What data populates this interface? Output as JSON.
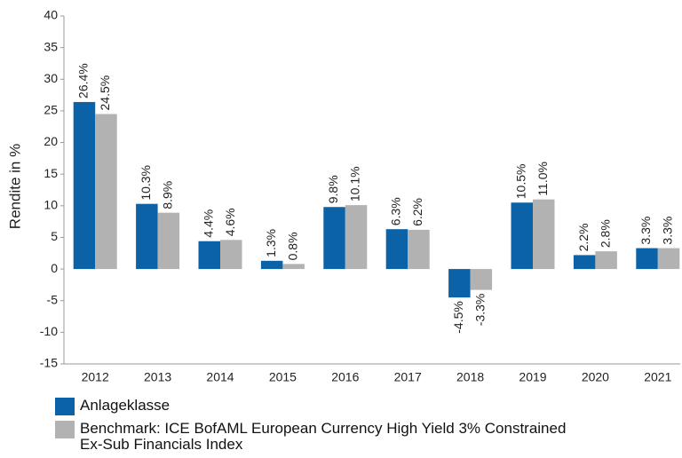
{
  "chart_data": {
    "type": "bar",
    "y_label": "Rendite in %",
    "categories": [
      "2012",
      "2013",
      "2014",
      "2015",
      "2016",
      "2017",
      "2018",
      "2019",
      "2020",
      "2021"
    ],
    "series": [
      {
        "name": "Anlageklasse",
        "color": "#0b62a6",
        "values": [
          26.4,
          10.3,
          4.4,
          1.3,
          9.8,
          6.3,
          -4.5,
          10.5,
          2.2,
          3.3
        ],
        "value_labels": [
          "26.4%",
          "10.3%",
          "4.4%",
          "1.3%",
          "9.8%",
          "6.3%",
          "-4.5%",
          "10.5%",
          "2.2%",
          "3.3%"
        ]
      },
      {
        "name": "Benchmark: ICE BofAML European Currency High Yield 3% Constrained Ex-Sub Financials Index",
        "color": "#b2b2b2",
        "values": [
          24.5,
          8.9,
          4.6,
          0.8,
          10.1,
          6.2,
          -3.3,
          11.0,
          2.8,
          3.3
        ],
        "value_labels": [
          "24.5%",
          "8.9%",
          "4.6%",
          "0.8%",
          "10.1%",
          "6.2%",
          "-3.3%",
          "11.0%",
          "2.8%",
          "3.3%"
        ]
      }
    ],
    "ylim": [
      -15,
      40
    ],
    "yticks": [
      -15,
      -10,
      -5,
      0,
      5,
      10,
      15,
      20,
      25,
      30,
      35,
      40
    ],
    "grid": false
  }
}
